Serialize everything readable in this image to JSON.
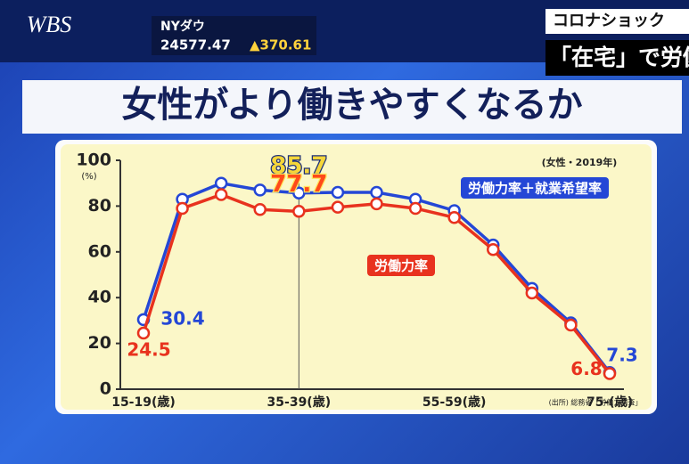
{
  "screen": {
    "logo": "WBS",
    "ticker_label": "NYダウ",
    "ticker_value": "24577.47",
    "ticker_change": "▲370.61",
    "topic": "コロナショック",
    "headline": "「在宅」で労働"
  },
  "chart_data": {
    "type": "line",
    "title": "女性がより働きやすくなるか",
    "subtitle": "(女性・2019年)",
    "y_label": "(%)",
    "source": "(出所) 総務省「労働力調査」",
    "categories": [
      "15-19(歳)",
      null,
      null,
      null,
      "35-39(歳)",
      null,
      null,
      null,
      "55-59(歳)",
      null,
      null,
      null,
      "75-(歳)"
    ],
    "series": [
      {
        "name": "労働力率＋就業希望率",
        "color": "#2447d6",
        "values": [
          30.4,
          83,
          90,
          87,
          85.7,
          86,
          86,
          83,
          78,
          63,
          44,
          29,
          7.3
        ],
        "value_labels": [
          "30.4",
          null,
          null,
          null,
          "85.7",
          null,
          null,
          null,
          null,
          null,
          null,
          null,
          "7.3"
        ]
      },
      {
        "name": "労働力率",
        "color": "#e8321e",
        "values": [
          24.5,
          79,
          85,
          78.5,
          77.7,
          79.5,
          81,
          79,
          75,
          61,
          42,
          28,
          6.8
        ],
        "value_labels": [
          "24.5",
          null,
          null,
          null,
          "77.7",
          null,
          null,
          null,
          null,
          null,
          null,
          null,
          "6.8"
        ]
      }
    ],
    "ylim": [
      0,
      100
    ],
    "yticks": [
      0,
      20,
      40,
      60,
      80,
      100
    ],
    "grid": false
  }
}
